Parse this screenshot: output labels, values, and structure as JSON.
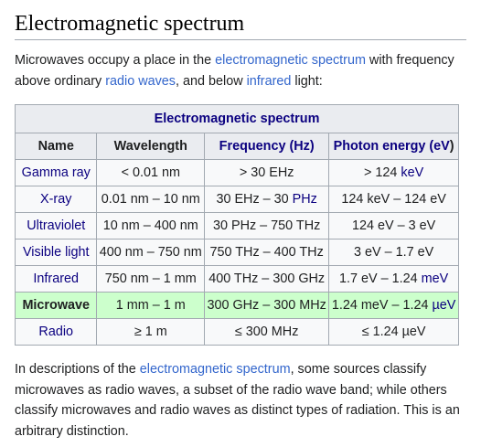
{
  "heading": "Electromagnetic spectrum",
  "intro": {
    "part1": "Microwaves occupy a place in the ",
    "link1": "electromagnetic spectrum",
    "part2": " with frequency above ordinary ",
    "link2": "radio waves",
    "part3": ", and below ",
    "link3": "infrared",
    "part4": " light:"
  },
  "table": {
    "caption": "Electromagnetic spectrum",
    "headers": {
      "name": "Name",
      "wavelength": "Wavelength",
      "frequency": "Frequency (Hz)",
      "energy_prefix": "Photon energy (",
      "energy_unit": "eV",
      "energy_suffix": ")"
    },
    "rows": [
      {
        "name": "Gamma ray",
        "wavelength": "< 0.01 nm",
        "frequency": "> 30 EHz",
        "energy_pre": "> 124 ",
        "energy_unit": "keV",
        "energy_post": ""
      },
      {
        "name": "X-ray",
        "wavelength": "0.01 nm – 10 nm",
        "frequency_pre": "30 EHz – 30 ",
        "frequency_unit": "PHz",
        "energy": "124 keV – 124 eV"
      },
      {
        "name": "Ultraviolet",
        "wavelength": "10 nm – 400 nm",
        "frequency": "30 PHz – 750 THz",
        "energy": "124 eV – 3 eV"
      },
      {
        "name": "Visible light",
        "wavelength": "400 nm – 750 nm",
        "frequency": "750 THz – 400 THz",
        "energy": "3 eV – 1.7 eV"
      },
      {
        "name": "Infrared",
        "wavelength": "750 nm – 1 mm",
        "frequency": "400 THz – 300 GHz",
        "energy_pre": "1.7 eV – 1.24 ",
        "energy_unit": "meV"
      },
      {
        "name": "Microwave",
        "wavelength": "1 mm – 1 m",
        "frequency": "300 GHz – 300 MHz",
        "energy_pre": "1.24 meV – 1.24 ",
        "energy_unit": "µeV"
      },
      {
        "name": "Radio",
        "wavelength": "≥ 1 m",
        "frequency": "≤ 300 MHz",
        "energy": "≤ 1.24 µeV"
      }
    ]
  },
  "outro": {
    "part1": "In descriptions of the ",
    "link1": "electromagnetic spectrum",
    "part2": ", some sources classify microwaves as radio waves, a subset of the radio wave band; while others classify microwaves and radio waves as distinct types of radiation. This is an arbitrary distinction."
  },
  "colors": {
    "link": "#3366cc",
    "visited_link": "#0b0080",
    "header_bg": "#eaecf0",
    "table_bg": "#f8f9fa",
    "highlight_bg": "#ccffcc",
    "border": "#a2a9b1"
  }
}
